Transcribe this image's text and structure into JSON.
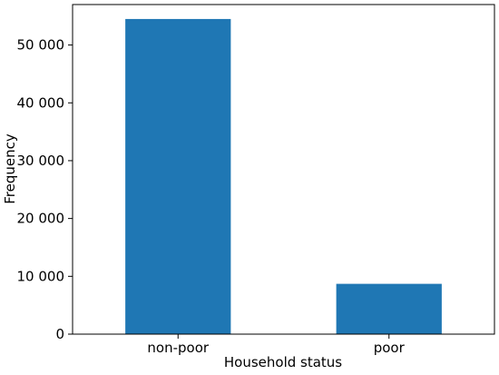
{
  "chart_data": {
    "type": "bar",
    "categories": [
      "non-poor",
      "poor"
    ],
    "values": [
      54500,
      8700
    ],
    "title": "",
    "xlabel": "Household status",
    "ylabel": "Frequency",
    "ylim": [
      0,
      57000
    ],
    "yticks": [
      0,
      10000,
      20000,
      30000,
      40000,
      50000
    ],
    "ytick_labels": [
      "0",
      "10 000",
      "20 000",
      "30 000",
      "40 000",
      "50 000"
    ],
    "bar_color": "#1f77b4",
    "grid": false,
    "legend": "none"
  }
}
